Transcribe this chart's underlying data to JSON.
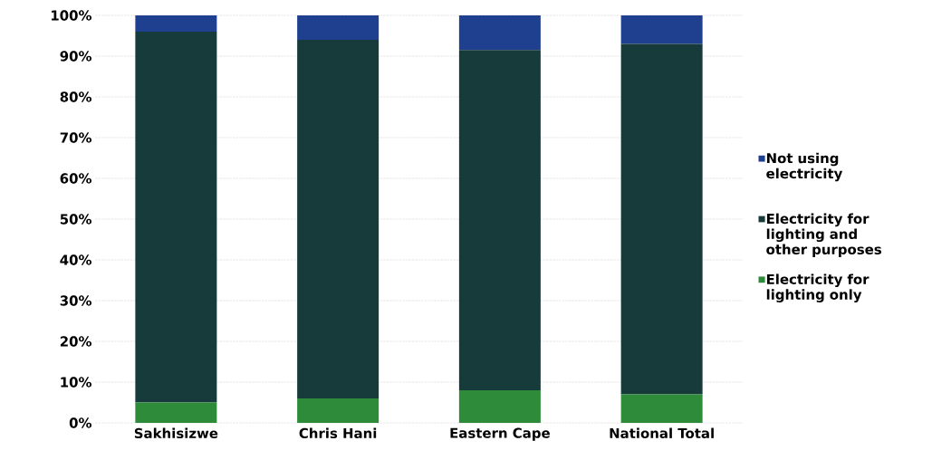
{
  "chart_data": {
    "type": "bar",
    "stacked": true,
    "categories": [
      "Sakhisizwe",
      "Chris Hani",
      "Eastern Cape",
      "National Total"
    ],
    "series": [
      {
        "name": "Electricity for lighting only",
        "color": "#2e8b3a",
        "values": [
          5,
          6,
          8,
          7
        ]
      },
      {
        "name": "Electricity for lighting and other purposes",
        "color": "#173a3a",
        "values": [
          91,
          88,
          83.5,
          86
        ]
      },
      {
        "name": "Not using electricity",
        "color": "#1f3f8f",
        "values": [
          4,
          6,
          8.5,
          7
        ]
      }
    ],
    "ylim": [
      0,
      100
    ],
    "yticks": [
      {
        "value": 0,
        "label": "0%"
      },
      {
        "value": 10,
        "label": "10%"
      },
      {
        "value": 20,
        "label": "20%"
      },
      {
        "value": 30,
        "label": "30%"
      },
      {
        "value": 40,
        "label": "40%"
      },
      {
        "value": 50,
        "label": "50%"
      },
      {
        "value": 60,
        "label": "60%"
      },
      {
        "value": 70,
        "label": "70%"
      },
      {
        "value": 80,
        "label": "80%"
      },
      {
        "value": 90,
        "label": "90%"
      },
      {
        "value": 100,
        "label": "100%"
      }
    ],
    "grid": "y",
    "legend": "right"
  }
}
